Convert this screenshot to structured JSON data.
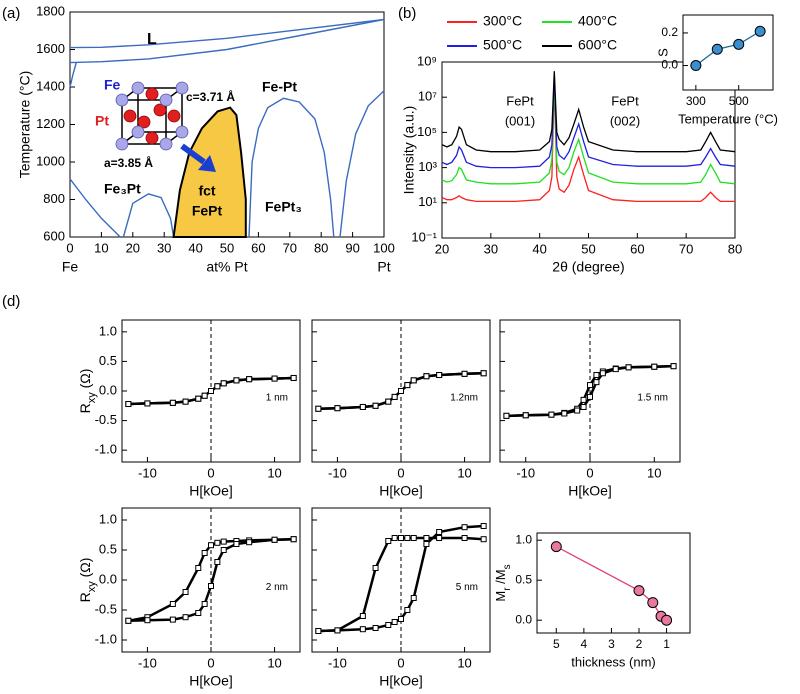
{
  "panel_labels": [
    "(a)",
    "(b)",
    "(d)"
  ],
  "chart_data": [
    {
      "type": "phase-diagram",
      "xlabel": "at% Pt",
      "ylabel": "Temperature (°C)",
      "xlim": [
        0,
        100
      ],
      "xticks": [
        0,
        10,
        20,
        30,
        40,
        50,
        60,
        70,
        80,
        90,
        100
      ],
      "ylim": [
        600,
        1800
      ],
      "yticks": [
        600,
        800,
        1000,
        1200,
        1400,
        1600,
        1800
      ],
      "end_labels": [
        "Fe",
        "Pt"
      ],
      "annotations": [
        "L",
        "Fe-Pt",
        "Fe₃Pt",
        "fct",
        "FePt",
        "FePt₃",
        "Fe",
        "Pt",
        "c=3.71 Å",
        "a=3.85 Å"
      ],
      "boundaries": [
        {
          "color": "#3a6cc0",
          "x": [
            0,
            10,
            25,
            50,
            75,
            100
          ],
          "y": [
            1610,
            1612,
            1625,
            1660,
            1710,
            1760
          ]
        },
        {
          "color": "#3a6cc0",
          "x": [
            0,
            10,
            25,
            50,
            75,
            100
          ],
          "y": [
            1530,
            1535,
            1550,
            1600,
            1680,
            1760
          ]
        },
        {
          "color": "#3a6cc0",
          "x": [
            0,
            1,
            2
          ],
          "y": [
            1400,
            1470,
            1530
          ]
        },
        {
          "color": "#3a6cc0",
          "x": [
            0,
            5,
            10,
            16
          ],
          "y": [
            910,
            800,
            700,
            600
          ]
        },
        {
          "color": "#3a6cc0",
          "x": [
            17,
            20,
            25,
            29,
            32,
            33
          ],
          "y": [
            600,
            780,
            830,
            810,
            700,
            600
          ]
        },
        {
          "color": "#000000",
          "fill": "#f7c843",
          "x": [
            33,
            35,
            38,
            42,
            47,
            51,
            53,
            54.5,
            56,
            56
          ],
          "y": [
            600,
            850,
            1050,
            1180,
            1270,
            1290,
            1250,
            1050,
            800,
            600
          ]
        },
        {
          "color": "#3a6cc0",
          "x": [
            57,
            58,
            60,
            63,
            68,
            73,
            78,
            81,
            83,
            84
          ],
          "y": [
            600,
            1000,
            1180,
            1290,
            1340,
            1320,
            1230,
            1050,
            800,
            600
          ]
        },
        {
          "color": "#3a6cc0",
          "x": [
            86,
            88,
            91,
            95,
            100
          ],
          "y": [
            600,
            900,
            1150,
            1300,
            1380
          ]
        }
      ]
    },
    {
      "type": "line",
      "log_y": true,
      "xlabel": "2θ (degree)",
      "ylabel": "Intensity (a.u.)",
      "xlim": [
        20,
        80
      ],
      "xticks": [
        20,
        30,
        40,
        50,
        60,
        70,
        80
      ],
      "ylim": [
        0.1,
        1000000000
      ],
      "yticks": [
        {
          "value": 0.1,
          "label": "10⁻¹"
        },
        {
          "value": 10,
          "label": "10¹"
        },
        {
          "value": 1000,
          "label": "10³"
        },
        {
          "value": 100000,
          "label": "10⁵"
        },
        {
          "value": 10000000,
          "label": "10⁷"
        },
        {
          "value": 1000000000,
          "label": "10⁹"
        }
      ],
      "annotations": [
        "FePt",
        "(001)",
        "FePt",
        "(002)"
      ],
      "legend": "top-left",
      "x": [
        20,
        21,
        22,
        23,
        23.5,
        24,
        25,
        27,
        30,
        35,
        40,
        42,
        42.5,
        43,
        43.5,
        44,
        45,
        46,
        47,
        48,
        49,
        50,
        55,
        60,
        65,
        70,
        73,
        74,
        75,
        76,
        77,
        80
      ],
      "series": [
        {
          "name": "300°C",
          "color": "#ff2020",
          "values": [
            20,
            15,
            15,
            20,
            25,
            20,
            15,
            12,
            12,
            12,
            15,
            50,
            300,
            50000000,
            300,
            60,
            40,
            100,
            800,
            4000,
            400,
            50,
            15,
            12,
            12,
            12,
            12,
            20,
            40,
            20,
            12,
            12
          ]
        },
        {
          "name": "400°C",
          "color": "#20e020",
          "values": [
            200,
            150,
            180,
            400,
            1000,
            800,
            200,
            150,
            120,
            120,
            150,
            500,
            3000,
            100000000,
            2000,
            600,
            400,
            1000,
            8000,
            40000,
            4000,
            500,
            150,
            120,
            120,
            120,
            150,
            400,
            1500,
            500,
            150,
            120
          ]
        },
        {
          "name": "500°C",
          "color": "#2020e0",
          "values": [
            2000,
            1500,
            2000,
            5000,
            15000,
            10000,
            2000,
            1200,
            1000,
            1000,
            1200,
            4000,
            20000,
            200000000,
            15000,
            5000,
            3000,
            8000,
            50000,
            300000,
            30000,
            4000,
            1500,
            1200,
            1200,
            1200,
            1500,
            4000,
            12000,
            4000,
            1500,
            1200
          ]
        },
        {
          "name": "600°C",
          "color": "#000000",
          "values": [
            20000,
            15000,
            20000,
            60000,
            200000,
            150000,
            20000,
            10000,
            8000,
            8000,
            10000,
            30000,
            150000,
            300000000,
            100000,
            40000,
            20000,
            50000,
            300000,
            2000000,
            200000,
            30000,
            10000,
            8000,
            8000,
            8000,
            10000,
            30000,
            100000,
            30000,
            10000,
            8000
          ]
        }
      ]
    },
    {
      "type": "line",
      "xlabel": "Temperature (°C)",
      "ylabel": "S",
      "xlim": [
        240,
        660
      ],
      "xticks": [
        300,
        500
      ],
      "ylim": [
        -0.15,
        0.31
      ],
      "yticks": [
        {
          "value": 0,
          "label": "0.0"
        },
        0.2
      ],
      "x": [
        300,
        400,
        500,
        600
      ],
      "series": [
        {
          "color": "#1a6f9a",
          "values": [
            0,
            0.1,
            0.13,
            0.21
          ]
        }
      ],
      "marker": "circle",
      "marker_fill": "#3a8fd0"
    },
    {
      "type": "line",
      "label": "1 nm",
      "xlabel": "H[kOe]",
      "ylabel": [
        "R",
        "xy",
        " (Ω)"
      ],
      "xlim": [
        -14,
        14
      ],
      "xticks": [
        -10,
        0,
        10
      ],
      "ylim": [
        -1.2,
        1.2
      ],
      "yticks": [
        {
          "value": -1,
          "label": "-1.0"
        },
        -0.5,
        {
          "value": 0,
          "label": "0.0"
        },
        0.5,
        {
          "value": 1,
          "label": "1.0"
        }
      ],
      "vline": 0,
      "x": [
        -13,
        -10,
        -6,
        -4,
        -2,
        -1,
        0,
        1,
        2,
        4,
        6,
        10,
        13
      ],
      "series": [
        {
          "color": "#000000",
          "values": [
            -0.22,
            -0.21,
            -0.2,
            -0.18,
            -0.13,
            -0.08,
            0,
            0.08,
            0.13,
            0.18,
            0.2,
            0.21,
            0.22
          ]
        },
        {
          "color": "#000000",
          "values": [
            -0.22,
            -0.21,
            -0.2,
            -0.18,
            -0.13,
            -0.08,
            0,
            0.08,
            0.13,
            0.18,
            0.2,
            0.21,
            0.22
          ]
        }
      ],
      "marker": "square",
      "marker_fill": "#ffffff"
    },
    {
      "type": "line",
      "label": "1.2nm",
      "xlabel": "H[kOe]",
      "xlim": [
        -14,
        14
      ],
      "xticks": [
        -10,
        0,
        10
      ],
      "ylim": [
        -1.2,
        1.2
      ],
      "yticks": [
        -1,
        -0.5,
        0,
        0.5,
        1
      ],
      "vline": 0,
      "x": [
        -13,
        -10,
        -6,
        -4,
        -2,
        -1,
        0,
        1,
        2,
        4,
        6,
        10,
        13
      ],
      "series": [
        {
          "color": "#000000",
          "values": [
            -0.3,
            -0.29,
            -0.27,
            -0.25,
            -0.18,
            -0.1,
            0,
            0.1,
            0.18,
            0.25,
            0.27,
            0.29,
            0.3
          ]
        },
        {
          "color": "#000000",
          "values": [
            -0.3,
            -0.29,
            -0.27,
            -0.25,
            -0.18,
            -0.1,
            0,
            0.1,
            0.18,
            0.25,
            0.27,
            0.29,
            0.3
          ]
        }
      ],
      "marker": "square",
      "marker_fill": "#ffffff"
    },
    {
      "type": "line",
      "label": "1.5 nm",
      "xlabel": "H[kOe]",
      "xlim": [
        -14,
        14
      ],
      "xticks": [
        -10,
        0,
        10
      ],
      "ylim": [
        -1.2,
        1.2
      ],
      "yticks": [
        -1,
        -0.5,
        0,
        0.5,
        1
      ],
      "vline": 0,
      "x": [
        -13,
        -10,
        -6,
        -4,
        -2,
        -1,
        0,
        1,
        2,
        4,
        6,
        10,
        13
      ],
      "series": [
        {
          "color": "#000000",
          "values": [
            -0.42,
            -0.41,
            -0.4,
            -0.37,
            -0.3,
            -0.15,
            0.1,
            0.27,
            0.33,
            0.38,
            0.4,
            0.41,
            0.42
          ]
        },
        {
          "color": "#000000",
          "values": [
            -0.42,
            -0.41,
            -0.4,
            -0.38,
            -0.33,
            -0.27,
            -0.1,
            0.15,
            0.3,
            0.37,
            0.4,
            0.41,
            0.42
          ]
        }
      ],
      "marker": "square",
      "marker_fill": "#ffffff"
    },
    {
      "type": "line",
      "label": "2 nm",
      "xlabel": "H[kOe]",
      "ylabel": [
        "R",
        "xy",
        " (Ω)"
      ],
      "xlim": [
        -14,
        14
      ],
      "xticks": [
        -10,
        0,
        10
      ],
      "ylim": [
        -1.2,
        1.2
      ],
      "yticks": [
        {
          "value": -1,
          "label": "-1.0"
        },
        -0.5,
        {
          "value": 0,
          "label": "0.0"
        },
        0.5,
        {
          "value": 1,
          "label": "1.0"
        }
      ],
      "vline": 0,
      "x": [
        -13,
        -10,
        -6,
        -4,
        -2,
        -1,
        0,
        1,
        2,
        4,
        6,
        10,
        13
      ],
      "series": [
        {
          "color": "#000000",
          "values": [
            -0.68,
            -0.62,
            -0.4,
            -0.2,
            0.2,
            0.45,
            0.58,
            0.62,
            0.64,
            0.65,
            0.66,
            0.67,
            0.68
          ]
        },
        {
          "color": "#000000",
          "values": [
            -0.68,
            -0.67,
            -0.66,
            -0.62,
            -0.55,
            -0.4,
            -0.1,
            0.3,
            0.5,
            0.6,
            0.63,
            0.67,
            0.68
          ]
        }
      ],
      "marker": "square",
      "marker_fill": "#ffffff"
    },
    {
      "type": "line",
      "label": "5 nm",
      "xlabel": "H[kOe]",
      "xlim": [
        -14,
        14
      ],
      "xticks": [
        -10,
        0,
        10
      ],
      "ylim": [
        -1.2,
        1.2
      ],
      "yticks": [
        -1,
        -0.5,
        0,
        0.5,
        1
      ],
      "vline": 0,
      "x": [
        -13,
        -10,
        -6,
        -4,
        -2,
        -1,
        0,
        1,
        2,
        4,
        6,
        10,
        13
      ],
      "series": [
        {
          "color": "#000000",
          "values": [
            -0.85,
            -0.84,
            -0.6,
            0.2,
            0.65,
            0.7,
            0.7,
            0.7,
            0.7,
            0.7,
            0.7,
            0.7,
            0.68
          ]
        },
        {
          "color": "#000000",
          "values": [
            -0.85,
            -0.84,
            -0.82,
            -0.8,
            -0.75,
            -0.7,
            -0.65,
            -0.5,
            -0.3,
            0.6,
            0.8,
            0.88,
            0.9
          ]
        }
      ],
      "marker": "square",
      "marker_fill": "#ffffff"
    },
    {
      "type": "line",
      "xlabel": "thickness (nm)",
      "ylabel": [
        "M",
        "r",
        " /M",
        "s"
      ],
      "xlim": [
        5.7,
        0.15
      ],
      "xticks": [
        5,
        4,
        3,
        2,
        1
      ],
      "ylim": [
        -0.16,
        1.09
      ],
      "yticks": [
        {
          "value": 0,
          "label": "0.0"
        },
        0.5,
        {
          "value": 1,
          "label": "1.0"
        }
      ],
      "x": [
        5,
        2,
        1.5,
        1.2,
        1
      ],
      "series": [
        {
          "color": "#e0407a",
          "values": [
            0.92,
            0.37,
            0.22,
            0.05,
            0
          ]
        }
      ],
      "marker": "circle",
      "marker_fill": "#e878a0"
    }
  ]
}
